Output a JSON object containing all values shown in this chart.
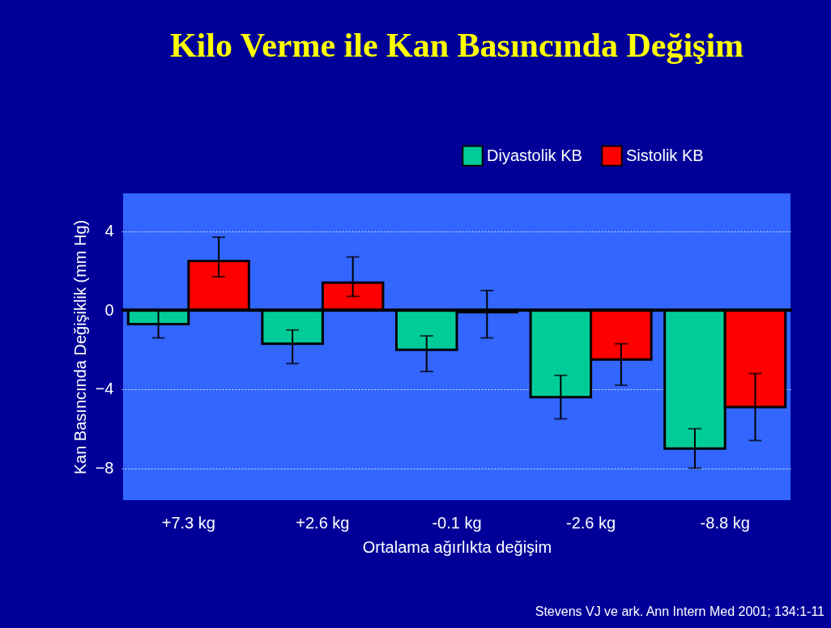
{
  "chart_data": {
    "type": "bar",
    "title": "Kilo Verme ile Kan Basıncında Değişim",
    "xlabel": "Ortalama ağırlıkta değişim",
    "ylabel": "Kan Basıncında Değişiklik (mm Hg)",
    "categories": [
      "+7.3 kg",
      "+2.6 kg",
      "-0.1 kg",
      "-2.6 kg",
      "-8.8 kg"
    ],
    "series": [
      {
        "name": "Diyastolik KB",
        "color": "#00cc99",
        "values": [
          -0.7,
          -1.7,
          -2.0,
          -4.4,
          -7.0
        ],
        "errors": [
          0.7,
          [
            -2.7,
            -1.0
          ],
          [
            -3.1,
            -1.3
          ],
          1.1,
          1.0
        ]
      },
      {
        "name": "Sistolik KB",
        "color": "#ff0000",
        "values": [
          2.5,
          1.4,
          -0.1,
          -2.5,
          -4.9
        ],
        "errors": [
          [
            1.7,
            3.7
          ],
          [
            0.7,
            2.7
          ],
          [
            -1.4,
            1.0
          ],
          [
            -3.8,
            -1.7
          ],
          1.7
        ]
      }
    ],
    "ylim": [
      -9.7,
      6
    ],
    "yticks": [
      4,
      0,
      -4,
      -8
    ],
    "grid": "y",
    "legend": "top right",
    "ref_lines": [
      {
        "axis": "y",
        "value": 0,
        "color": "#000000"
      }
    ],
    "annotations": [
      "Stevens VJ ve ark. Ann Intern Med 2001; 134:1-11"
    ]
  }
}
